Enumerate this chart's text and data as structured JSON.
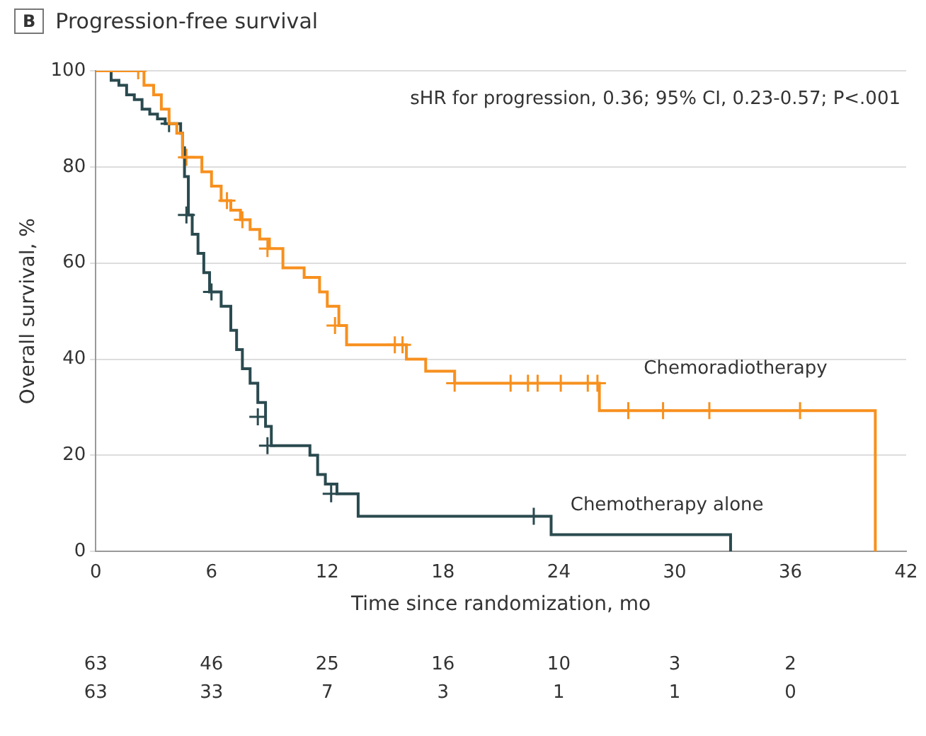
{
  "chart_data": {
    "type": "step",
    "title": "Progression-free survival",
    "xlabel": "Time since randomization, mo",
    "ylabel": "Overall survival, %",
    "annotations": [
      "B",
      "sHR for progression, 0.36; 95% CI, 0.23-0.57; P<.001",
      "63",
      "46",
      "25",
      "16",
      "10",
      "3",
      "2",
      "63",
      "33",
      "7",
      "3",
      "1",
      "1",
      "0"
    ],
    "series": [
      {
        "name": "Chemoradiotherapy",
        "color": "#f7901e",
        "x": [
          0,
          2.5,
          3,
          3.4,
          3.8,
          4.2,
          4.5,
          5.5,
          6,
          6.5,
          7,
          7.5,
          8,
          8.5,
          9,
          9.7,
          10.8,
          11.6,
          12,
          12.6,
          13,
          16.1,
          17.1,
          18.6,
          26.1,
          40.4
        ],
        "values": [
          100,
          97,
          95,
          92,
          89,
          87,
          82,
          79,
          76,
          73,
          71,
          69,
          67,
          65,
          63,
          59,
          57,
          54,
          51,
          47,
          43,
          40,
          37.5,
          35,
          29.3,
          0
        ]
      },
      {
        "name": "Chemotherapy alone",
        "color": "#2a4a4f",
        "x": [
          0,
          0.8,
          1.2,
          1.6,
          2,
          2.4,
          2.8,
          3.2,
          3.6,
          4.4,
          4.5,
          4.6,
          4.8,
          5,
          5.3,
          5.6,
          5.9,
          6.5,
          7,
          7.3,
          7.6,
          8,
          8.4,
          8.8,
          9.1,
          11.1,
          11.5,
          11.9,
          12.5,
          13.6,
          23.6,
          32.9
        ],
        "values": [
          100,
          98,
          97,
          95,
          94,
          92,
          91,
          90,
          89,
          87,
          84,
          78,
          70,
          66,
          62,
          58,
          54,
          51,
          46,
          42,
          38,
          35,
          31,
          26,
          22,
          20,
          16,
          14,
          12,
          7.3,
          3.5,
          0
        ]
      },
      {
        "type": "scatter",
        "marker": "cross",
        "color": "#f7901e",
        "x": [
          2.2,
          4.7,
          6.8,
          7.6,
          8.9,
          12.4,
          15.5,
          15.9,
          18.6,
          21.5,
          22.4,
          22.9,
          24.1,
          25.5,
          26,
          27.6,
          29.4,
          31.8,
          36.5
        ],
        "values": [
          100,
          82,
          73,
          69,
          63,
          47,
          43,
          43,
          35,
          35,
          35,
          35,
          35,
          35,
          35,
          29.3,
          29.3,
          29.3,
          29.3
        ]
      },
      {
        "type": "scatter",
        "marker": "cross",
        "color": "#2a4a4f",
        "x": [
          3.8,
          4.7,
          6,
          8.4,
          8.9,
          12.2,
          22.7
        ],
        "values": [
          89,
          70,
          54,
          28,
          22,
          12,
          7.3
        ]
      }
    ],
    "xlim": [
      0,
      42
    ],
    "xticks": [
      0,
      6,
      12,
      18,
      24,
      30,
      36,
      42
    ],
    "ylim": [
      0,
      100
    ],
    "yticks": [
      0,
      20,
      40,
      60,
      80,
      100
    ],
    "grid": "y",
    "legend": false
  }
}
